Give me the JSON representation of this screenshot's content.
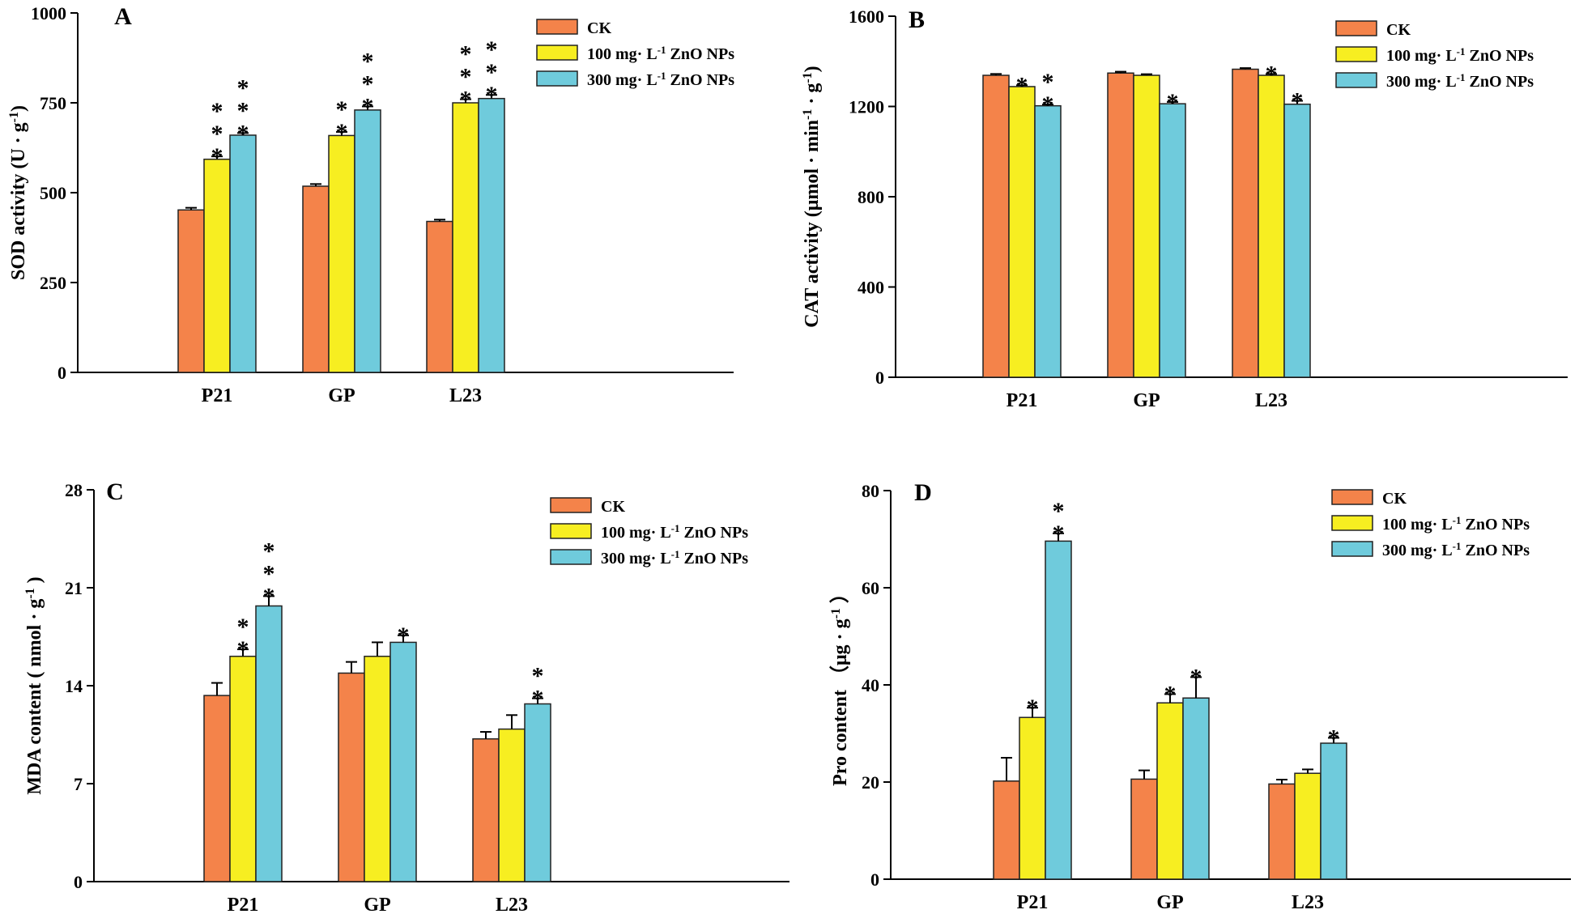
{
  "series_names": [
    "CK",
    "100 mg· L-1 ZnO NPs",
    "300 mg· L-1 ZnO NPs"
  ],
  "legend": [
    {
      "pre": "CK",
      "sup": "",
      "post": ""
    },
    {
      "pre": "100 mg· L",
      "sup": "-1",
      "post": " ZnO NPs"
    },
    {
      "pre": "300 mg· L",
      "sup": "-1",
      "post": " ZnO NPs"
    }
  ],
  "colors": {
    "series": [
      "#F4834A",
      "#F7EE21",
      "#6FCBDC"
    ],
    "axis": "#000000"
  },
  "chart_data": [
    {
      "type": "bar",
      "panel_label": "A",
      "categories": [
        "P21",
        "GP",
        "L23"
      ],
      "ylabel": {
        "pre": "SOD activity (U · g",
        "sup": "-1",
        "post": ")"
      },
      "ylim": [
        0,
        1000
      ],
      "yticks": [
        0,
        250,
        500,
        750,
        1000
      ],
      "series": [
        {
          "name": "CK",
          "values": [
            452,
            518,
            420
          ],
          "errors": [
            6,
            6,
            5
          ]
        },
        {
          "name": "100 mg· L-1 ZnO NPs",
          "values": [
            593,
            659,
            750
          ],
          "errors": [
            8,
            10,
            10
          ]
        },
        {
          "name": "300 mg· L-1 ZnO NPs",
          "values": [
            660,
            730,
            762
          ],
          "errors": [
            6,
            10,
            10
          ]
        }
      ],
      "significance": [
        [
          "",
          "",
          ""
        ],
        [
          "***",
          "**",
          "***"
        ],
        [
          "***",
          "***",
          "***"
        ]
      ],
      "legend_position": "top-right"
    },
    {
      "type": "bar",
      "panel_label": "B",
      "categories": [
        "P21",
        "GP",
        "L23"
      ],
      "ylabel": {
        "pre": "CAT activity (μmol · min",
        "sup": "-1",
        "post": " · g"
      },
      "ylabel_tail_sup": "-1",
      "ylabel_tail": ")",
      "ylim": [
        0,
        1600
      ],
      "yticks": [
        0,
        400,
        800,
        1200,
        1600
      ],
      "series": [
        {
          "name": "CK",
          "values": [
            1338,
            1348,
            1365
          ],
          "errors": [
            6,
            6,
            5
          ]
        },
        {
          "name": "100 mg· L-1 ZnO NPs",
          "values": [
            1288,
            1338,
            1338
          ],
          "errors": [
            6,
            5,
            6
          ]
        },
        {
          "name": "300 mg· L-1 ZnO NPs",
          "values": [
            1203,
            1212,
            1210
          ],
          "errors": [
            6,
            8,
            15
          ]
        }
      ],
      "significance": [
        [
          "",
          "",
          ""
        ],
        [
          "*",
          "",
          "*"
        ],
        [
          "**",
          "*",
          "*"
        ]
      ],
      "legend_position": "top-right"
    },
    {
      "type": "bar",
      "panel_label": "C",
      "categories": [
        "P21",
        "GP",
        "L23"
      ],
      "ylabel": {
        "pre": "MDA content ( nmol · g",
        "sup": "-1",
        "post": " )"
      },
      "ylim": [
        0,
        28
      ],
      "yticks": [
        0,
        7,
        14,
        21,
        28
      ],
      "series": [
        {
          "name": "CK",
          "values": [
            13.3,
            14.9,
            10.2
          ],
          "errors": [
            0.9,
            0.8,
            0.5
          ]
        },
        {
          "name": "100 mg· L-1 ZnO NPs",
          "values": [
            16.1,
            16.1,
            10.9
          ],
          "errors": [
            0.5,
            1.0,
            1.0
          ]
        },
        {
          "name": "300 mg· L-1 ZnO NPs",
          "values": [
            19.7,
            17.1,
            12.7
          ],
          "errors": [
            0.7,
            0.5,
            0.4
          ]
        }
      ],
      "significance": [
        [
          "",
          "",
          ""
        ],
        [
          "**",
          "",
          ""
        ],
        [
          "***",
          "*",
          "**"
        ]
      ],
      "legend_position": "top-right"
    },
    {
      "type": "bar",
      "panel_label": "D",
      "categories": [
        "P21",
        "GP",
        "L23"
      ],
      "ylabel": {
        "pre": "Pro content （μg · g",
        "sup": "-1",
        "post": " ）"
      },
      "ylim": [
        0,
        80
      ],
      "yticks": [
        0,
        20,
        40,
        60,
        80
      ],
      "series": [
        {
          "name": "CK",
          "values": [
            20.2,
            20.6,
            19.6
          ],
          "errors": [
            4.8,
            1.8,
            0.9
          ]
        },
        {
          "name": "100 mg· L-1 ZnO NPs",
          "values": [
            33.3,
            36.3,
            21.8
          ],
          "errors": [
            2.0,
            1.8,
            0.8
          ]
        },
        {
          "name": "300 mg· L-1 ZnO NPs",
          "values": [
            69.6,
            37.3,
            28.0
          ],
          "errors": [
            1.6,
            4.3,
            1.1
          ]
        }
      ],
      "significance": [
        [
          "",
          "",
          ""
        ],
        [
          "*",
          "*",
          ""
        ],
        [
          "**",
          "*",
          "*"
        ]
      ],
      "legend_position": "top-right"
    }
  ]
}
